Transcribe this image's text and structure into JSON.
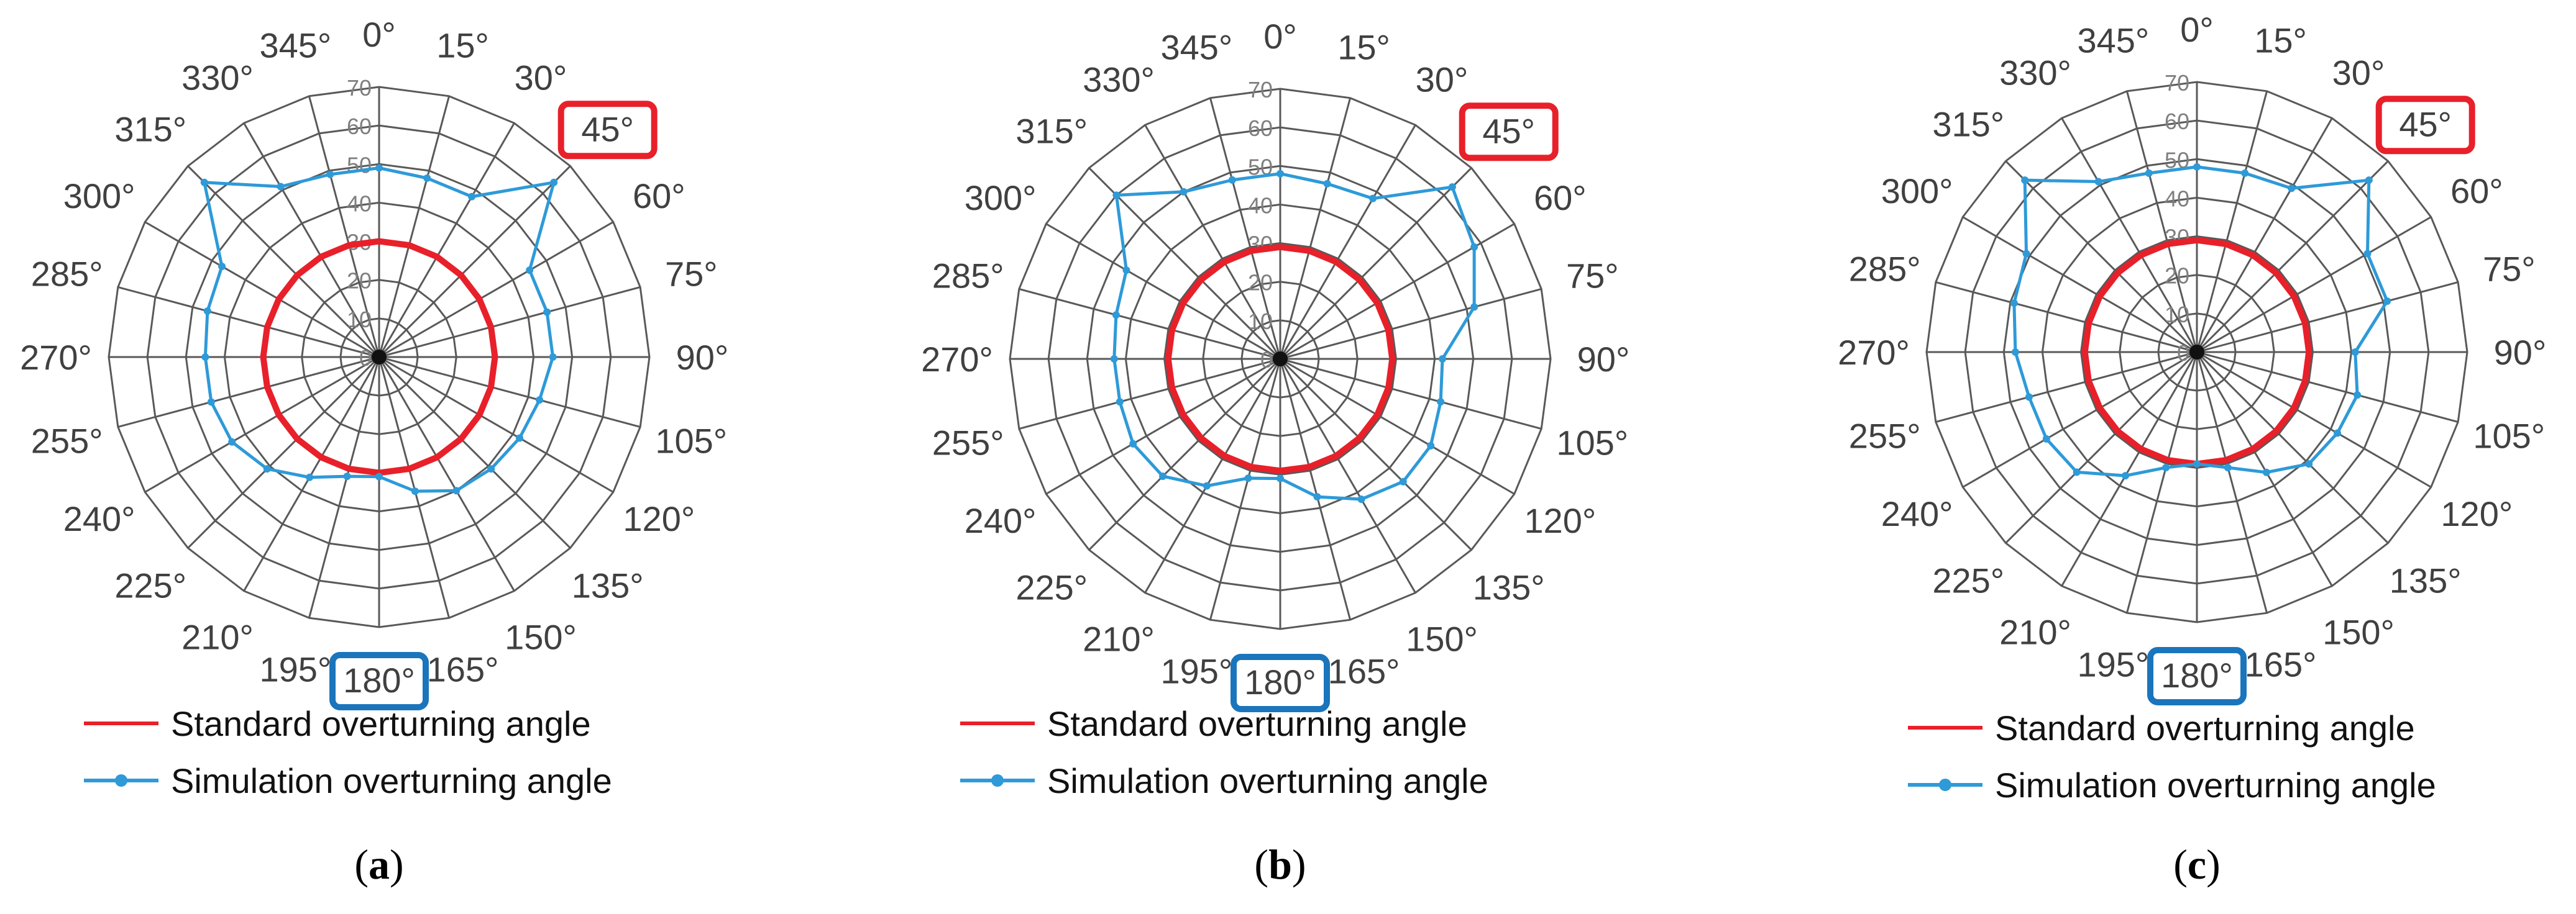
{
  "chart_data": [
    {
      "type": "polar-line",
      "panel_label": "a",
      "angle_labels": [
        "0°",
        "15°",
        "30°",
        "45°",
        "60°",
        "75°",
        "90°",
        "105°",
        "120°",
        "135°",
        "150°",
        "165°",
        "180°",
        "195°",
        "210°",
        "225°",
        "240°",
        "255°",
        "270°",
        "285°",
        "300°",
        "315°",
        "330°",
        "345°"
      ],
      "radial_ticks": [
        "0",
        "10",
        "20",
        "30",
        "40",
        "50",
        "60",
        "70"
      ],
      "rlim": [
        0,
        70
      ],
      "highlight_max_angle": "45°",
      "highlight_min_angle": "180°",
      "series": [
        {
          "name": "Standard overturning angle",
          "color": "#e8202a",
          "values": [
            30,
            30,
            30,
            30,
            30,
            30,
            30,
            30,
            30,
            30,
            30,
            30,
            30,
            30,
            30,
            30,
            30,
            30,
            30,
            30,
            30,
            30,
            30,
            30,
            30
          ]
        },
        {
          "name": "Simulation overturning angle",
          "color": "#2e9ad8",
          "values": [
            49,
            48,
            48,
            64,
            45,
            45,
            45,
            43,
            42,
            41,
            40,
            36,
            31,
            32,
            36,
            41,
            44,
            45,
            45,
            46,
            47,
            64,
            51,
            49,
            49
          ]
        }
      ]
    },
    {
      "type": "polar-line",
      "panel_label": "b",
      "angle_labels": [
        "0°",
        "15°",
        "30°",
        "45°",
        "60°",
        "75°",
        "90°",
        "105°",
        "120°",
        "135°",
        "150°",
        "165°",
        "180°",
        "195°",
        "210°",
        "225°",
        "240°",
        "255°",
        "270°",
        "285°",
        "300°",
        "315°",
        "330°",
        "345°"
      ],
      "radial_ticks": [
        "0",
        "10",
        "20",
        "30",
        "40",
        "50",
        "60",
        "70"
      ],
      "rlim": [
        0,
        70
      ],
      "highlight_max_angle": "45°",
      "highlight_min_angle": "180°",
      "series": [
        {
          "name": "Standard overturning angle",
          "color": "#e8202a",
          "values": [
            29,
            29,
            29,
            29,
            29,
            29,
            29,
            29,
            29,
            29,
            29,
            29,
            29,
            29,
            29,
            29,
            29,
            29,
            29,
            29,
            29,
            29,
            29,
            29,
            29
          ]
        },
        {
          "name": "Simulation overturning angle",
          "color": "#2e9ad8",
          "values": [
            48,
            47,
            48,
            63,
            58,
            52,
            42,
            43,
            45,
            45,
            42,
            37,
            31,
            32,
            38,
            43,
            44,
            43,
            43,
            44,
            46,
            60,
            50,
            48,
            48
          ]
        }
      ]
    },
    {
      "type": "polar-line",
      "panel_label": "c",
      "angle_labels": [
        "0°",
        "15°",
        "30°",
        "45°",
        "60°",
        "75°",
        "90°",
        "105°",
        "120°",
        "135°",
        "150°",
        "165°",
        "180°",
        "195°",
        "210°",
        "225°",
        "240°",
        "255°",
        "270°",
        "285°",
        "300°",
        "315°",
        "330°",
        "345°"
      ],
      "radial_ticks": [
        "0",
        "10",
        "20",
        "30",
        "40",
        "50",
        "60",
        "70"
      ],
      "rlim": [
        0,
        70
      ],
      "highlight_max_angle": "45°",
      "highlight_min_angle": "180°",
      "series": [
        {
          "name": "Standard overturning angle",
          "color": "#e8202a",
          "values": [
            29,
            29,
            29,
            29,
            29,
            29,
            29,
            29,
            29,
            29,
            29,
            29,
            29,
            29,
            29,
            29,
            29,
            29,
            29,
            29,
            29,
            29,
            29,
            29,
            29
          ]
        },
        {
          "name": "Simulation overturning angle",
          "color": "#2e9ad8",
          "values": [
            48,
            48,
            49,
            63,
            51,
            51,
            41,
            43,
            42,
            41,
            36,
            31,
            29,
            31,
            37,
            44,
            45,
            45,
            47,
            49,
            51,
            63,
            51,
            48,
            48
          ]
        }
      ]
    }
  ],
  "figure": {
    "captions": [
      {
        "open": "(",
        "letter": "a",
        "close": ")"
      },
      {
        "open": "(",
        "letter": "b",
        "close": ")"
      },
      {
        "open": "(",
        "letter": "c",
        "close": ")"
      }
    ],
    "legend": [
      [
        "Standard overturning angle",
        "Simulation overturning angle"
      ],
      [
        "Standard overturning angle",
        "Simulation overturning angle"
      ],
      [
        "Standard overturning angle",
        "Simulation overturning angle"
      ]
    ],
    "colors": {
      "grid": "#595959",
      "standard": "#e8202a",
      "simulation": "#2e9ad8",
      "max_box": "#e8202a",
      "min_box": "#1b75bc"
    }
  }
}
